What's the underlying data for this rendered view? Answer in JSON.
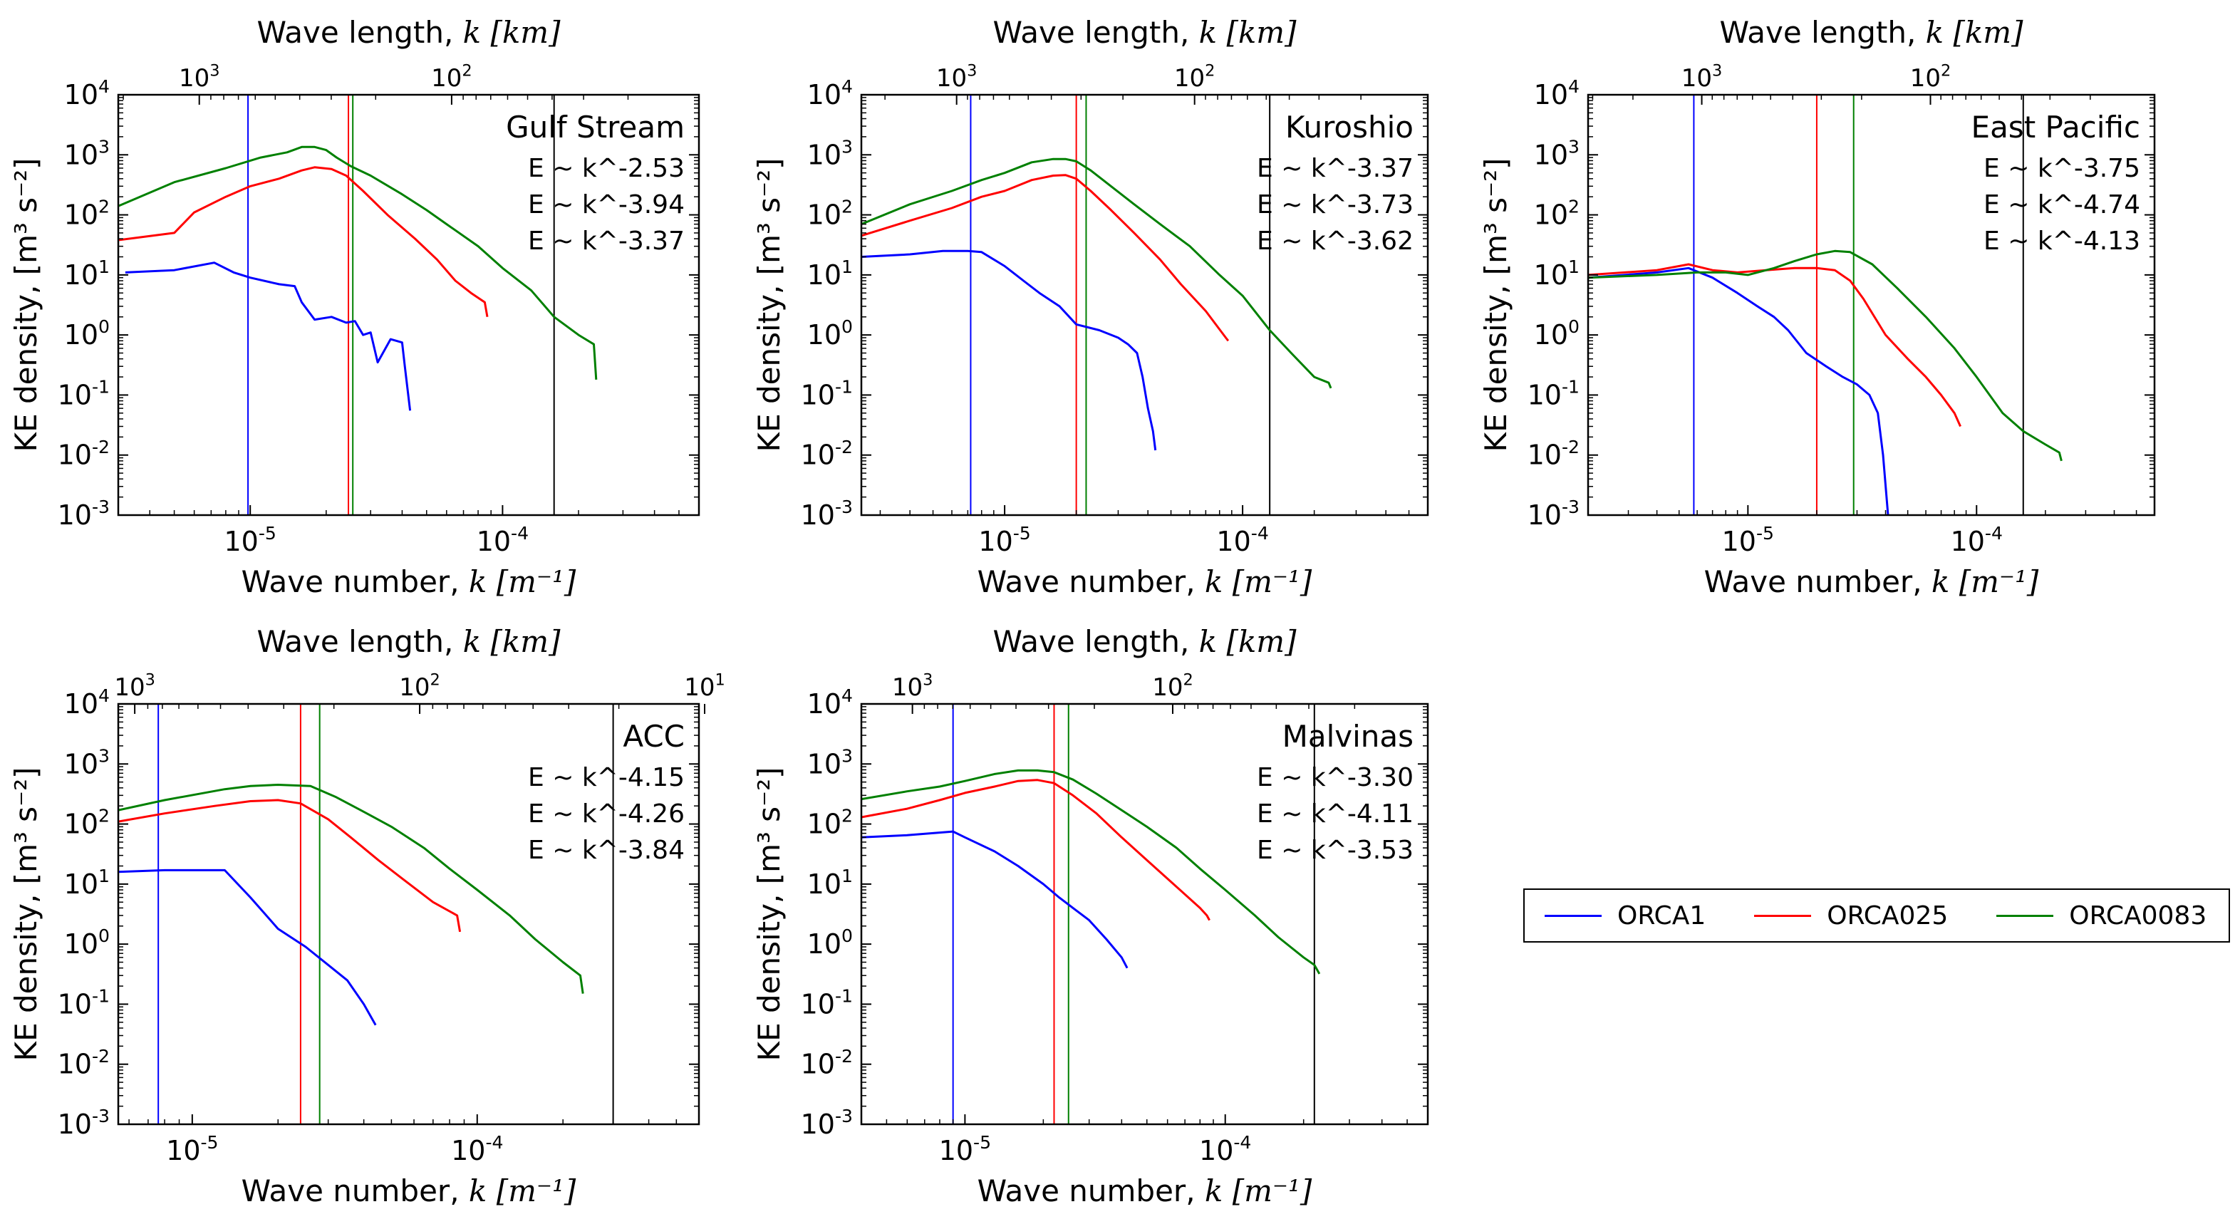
{
  "legend": [
    {
      "name": "ORCA1",
      "color": "#0000ff"
    },
    {
      "name": "ORCA025",
      "color": "#ff0000"
    },
    {
      "name": "ORCA0083",
      "color": "#008000"
    }
  ],
  "axis_text": {
    "xlabel": "Wave number, ",
    "xlabel_var": "k",
    "xlabel_unit": "[m⁻¹]",
    "ylabel": "KE density, [m³ s⁻²]",
    "toplabel": "Wave length, ",
    "toplabel_var": "k",
    "toplabel_unit": "[km]"
  },
  "chart_data": [
    {
      "type": "line",
      "title": "Gulf Stream",
      "xscale": "log",
      "yscale": "log",
      "xlim": [
        3e-06,
        0.0006
      ],
      "ylim": [
        0.001,
        10000
      ],
      "yticks": [
        "10^4",
        "10^3",
        "10^2",
        "10^1",
        "10^0",
        "10^-1",
        "10^-2",
        "10^-3"
      ],
      "xticks": [
        {
          "v": 1e-05,
          "base": "10",
          "exp": "-5"
        },
        {
          "v": 0.0001,
          "base": "10",
          "exp": "-4"
        }
      ],
      "top_ticks": [
        {
          "v": 6.283e-06,
          "base": "10",
          "exp": "3"
        },
        {
          "v": 6.283e-05,
          "base": "10",
          "exp": "2"
        }
      ],
      "slopes": [
        "E ~ k^-2.53",
        "E ~ k^-3.94",
        "E ~ k^-3.37"
      ],
      "vlines": [
        {
          "x": 9.8e-06,
          "color": "#0000ff"
        },
        {
          "x": 2.45e-05,
          "color": "#ff0000"
        },
        {
          "x": 2.55e-05,
          "color": "#008000"
        },
        {
          "x": 0.00016,
          "color": "#000000"
        }
      ],
      "series": [
        {
          "name": "ORCA1",
          "color": "#0000ff",
          "x": [
            3.2e-06,
            5e-06,
            7.2e-06,
            8.6e-06,
            1e-05,
            1.3e-05,
            1.5e-05,
            1.6e-05,
            1.8e-05,
            2.1e-05,
            2.4e-05,
            2.6e-05,
            2.8e-05,
            3e-05,
            3.2e-05,
            3.6e-05,
            4e-05,
            4.1e-05,
            4.3e-05
          ],
          "y": [
            11,
            12,
            16,
            11,
            9,
            7,
            6.5,
            3.5,
            1.8,
            2.0,
            1.6,
            1.7,
            1.0,
            1.1,
            0.35,
            0.85,
            0.75,
            0.3,
            0.055
          ]
        },
        {
          "name": "ORCA025",
          "color": "#ff0000",
          "x": [
            3e-06,
            5e-06,
            6e-06,
            8e-06,
            1e-05,
            1.3e-05,
            1.6e-05,
            1.8e-05,
            2.1e-05,
            2.4e-05,
            2.8e-05,
            3.5e-05,
            4.5e-05,
            5.5e-05,
            6.5e-05,
            7.5e-05,
            8.5e-05,
            8.7e-05
          ],
          "y": [
            38,
            50,
            110,
            200,
            300,
            400,
            550,
            620,
            580,
            450,
            250,
            100,
            40,
            18,
            8,
            5,
            3.5,
            2
          ]
        },
        {
          "name": "ORCA0083",
          "color": "#008000",
          "x": [
            3e-06,
            5e-06,
            8e-06,
            1.1e-05,
            1.4e-05,
            1.6e-05,
            1.8e-05,
            2e-05,
            2.2e-05,
            2.5e-05,
            3e-05,
            4e-05,
            5e-05,
            6e-05,
            8e-05,
            0.0001,
            0.00013,
            0.00016,
            0.0002,
            0.00023,
            0.000235
          ],
          "y": [
            140,
            350,
            600,
            900,
            1100,
            1350,
            1350,
            1200,
            900,
            650,
            450,
            220,
            120,
            70,
            30,
            13,
            5.5,
            2.0,
            1.0,
            0.7,
            0.18
          ]
        }
      ]
    },
    {
      "type": "line",
      "title": "Kuroshio",
      "xscale": "log",
      "yscale": "log",
      "xlim": [
        2.5e-06,
        0.0006
      ],
      "ylim": [
        0.001,
        10000
      ],
      "yticks": [
        "10^4",
        "10^3",
        "10^2",
        "10^1",
        "10^0",
        "10^-1",
        "10^-2",
        "10^-3"
      ],
      "xticks": [
        {
          "v": 1e-05,
          "base": "10",
          "exp": "-5"
        },
        {
          "v": 0.0001,
          "base": "10",
          "exp": "-4"
        }
      ],
      "top_ticks": [
        {
          "v": 6.283e-06,
          "base": "10",
          "exp": "3"
        },
        {
          "v": 6.283e-05,
          "base": "10",
          "exp": "2"
        }
      ],
      "slopes": [
        "E ~ k^-3.37",
        "E ~ k^-3.73",
        "E ~ k^-3.62"
      ],
      "vlines": [
        {
          "x": 7.2e-06,
          "color": "#0000ff"
        },
        {
          "x": 2e-05,
          "color": "#ff0000"
        },
        {
          "x": 2.2e-05,
          "color": "#008000"
        },
        {
          "x": 0.00013,
          "color": "#000000"
        }
      ],
      "series": [
        {
          "name": "ORCA1",
          "color": "#0000ff",
          "x": [
            2.5e-06,
            4e-06,
            5.5e-06,
            7e-06,
            8e-06,
            1e-05,
            1.2e-05,
            1.4e-05,
            1.7e-05,
            2e-05,
            2.5e-05,
            3e-05,
            3.3e-05,
            3.6e-05,
            3.8e-05,
            4e-05,
            4.2e-05,
            4.3e-05
          ],
          "y": [
            20,
            22,
            25,
            25,
            24,
            14,
            8,
            5,
            3,
            1.5,
            1.2,
            0.9,
            0.7,
            0.5,
            0.2,
            0.06,
            0.025,
            0.012
          ]
        },
        {
          "name": "ORCA025",
          "color": "#ff0000",
          "x": [
            2.5e-06,
            4e-06,
            6e-06,
            8e-06,
            1e-05,
            1.3e-05,
            1.6e-05,
            1.8e-05,
            2e-05,
            2.3e-05,
            2.8e-05,
            3.5e-05,
            4.5e-05,
            5.5e-05,
            7e-05,
            8.5e-05,
            8.7e-05
          ],
          "y": [
            45,
            80,
            130,
            200,
            250,
            380,
            450,
            460,
            400,
            250,
            120,
            50,
            18,
            7,
            2.5,
            0.9,
            0.8
          ]
        },
        {
          "name": "ORCA0083",
          "color": "#008000",
          "x": [
            2.5e-06,
            4e-06,
            6e-06,
            8e-06,
            1e-05,
            1.3e-05,
            1.6e-05,
            1.8e-05,
            2e-05,
            2.3e-05,
            2.8e-05,
            3.5e-05,
            4.5e-05,
            6e-05,
            8e-05,
            0.0001,
            0.00013,
            0.00016,
            0.0002,
            0.00023,
            0.000235
          ],
          "y": [
            70,
            150,
            250,
            380,
            500,
            750,
            850,
            850,
            780,
            550,
            300,
            150,
            70,
            30,
            10,
            4.5,
            1.2,
            0.5,
            0.2,
            0.16,
            0.13
          ]
        }
      ]
    },
    {
      "type": "line",
      "title": "East Pacific",
      "xscale": "log",
      "yscale": "log",
      "xlim": [
        2e-06,
        0.0006
      ],
      "ylim": [
        0.001,
        10000
      ],
      "yticks": [
        "10^4",
        "10^3",
        "10^2",
        "10^1",
        "10^0",
        "10^-1",
        "10^-2",
        "10^-3"
      ],
      "xticks": [
        {
          "v": 1e-05,
          "base": "10",
          "exp": "-5"
        },
        {
          "v": 0.0001,
          "base": "10",
          "exp": "-4"
        }
      ],
      "top_ticks": [
        {
          "v": 6.283e-06,
          "base": "10",
          "exp": "3"
        },
        {
          "v": 6.283e-05,
          "base": "10",
          "exp": "2"
        }
      ],
      "slopes": [
        "E ~ k^-3.75",
        "E ~ k^-4.74",
        "E ~ k^-4.13"
      ],
      "vlines": [
        {
          "x": 5.8e-06,
          "color": "#0000ff"
        },
        {
          "x": 2e-05,
          "color": "#ff0000"
        },
        {
          "x": 2.9e-05,
          "color": "#008000"
        },
        {
          "x": 0.00016,
          "color": "#000000"
        }
      ],
      "series": [
        {
          "name": "ORCA1",
          "color": "#0000ff",
          "x": [
            2e-06,
            4e-06,
            5.5e-06,
            7e-06,
            9e-06,
            1.1e-05,
            1.3e-05,
            1.5e-05,
            1.8e-05,
            2.2e-05,
            2.6e-05,
            3e-05,
            3.4e-05,
            3.7e-05,
            3.9e-05,
            4.1e-05
          ],
          "y": [
            9,
            11,
            13,
            9,
            5,
            3,
            2,
            1.2,
            0.5,
            0.3,
            0.2,
            0.15,
            0.1,
            0.05,
            0.01,
            0.001
          ]
        },
        {
          "name": "ORCA025",
          "color": "#ff0000",
          "x": [
            2e-06,
            4e-06,
            5.5e-06,
            7e-06,
            9e-06,
            1.2e-05,
            1.6e-05,
            2e-05,
            2.4e-05,
            2.8e-05,
            3.2e-05,
            4e-05,
            5e-05,
            6e-05,
            7e-05,
            8e-05,
            8.5e-05
          ],
          "y": [
            10,
            12,
            15,
            12,
            11,
            12,
            13,
            13,
            12,
            8,
            4,
            1,
            0.4,
            0.2,
            0.1,
            0.05,
            0.03
          ]
        },
        {
          "name": "ORCA0083",
          "color": "#008000",
          "x": [
            2e-06,
            4e-06,
            6e-06,
            8e-06,
            1e-05,
            1.3e-05,
            1.6e-05,
            2e-05,
            2.4e-05,
            2.8e-05,
            3.5e-05,
            4.5e-05,
            6e-05,
            8e-05,
            0.0001,
            0.00013,
            0.00016,
            0.0002,
            0.00023,
            0.000235
          ],
          "y": [
            9,
            10,
            11,
            11,
            10,
            13,
            17,
            22,
            25,
            24,
            15,
            6,
            2,
            0.6,
            0.2,
            0.05,
            0.025,
            0.015,
            0.011,
            0.008
          ]
        }
      ]
    },
    {
      "type": "line",
      "title": "ACC",
      "xscale": "log",
      "yscale": "log",
      "xlim": [
        5.5e-06,
        0.0006
      ],
      "ylim": [
        0.001,
        10000
      ],
      "yticks": [
        "10^4",
        "10^3",
        "10^2",
        "10^1",
        "10^0",
        "10^-1",
        "10^-2",
        "10^-3"
      ],
      "xticks": [
        {
          "v": 1e-05,
          "base": "10",
          "exp": "-5"
        },
        {
          "v": 0.0001,
          "base": "10",
          "exp": "-4"
        }
      ],
      "top_ticks": [
        {
          "v": 6.283e-06,
          "base": "10",
          "exp": "3"
        },
        {
          "v": 6.283e-05,
          "base": "10",
          "exp": "2"
        },
        {
          "v": 0.0006283,
          "base": "10",
          "exp": "1"
        }
      ],
      "slopes": [
        "E ~ k^-4.15",
        "E ~ k^-4.26",
        "E ~ k^-3.84"
      ],
      "vlines": [
        {
          "x": 7.6e-06,
          "color": "#0000ff"
        },
        {
          "x": 2.4e-05,
          "color": "#ff0000"
        },
        {
          "x": 2.8e-05,
          "color": "#008000"
        },
        {
          "x": 0.0003,
          "color": "#000000"
        }
      ],
      "series": [
        {
          "name": "ORCA1",
          "color": "#0000ff",
          "x": [
            5.5e-06,
            8e-06,
            1.3e-05,
            1.6e-05,
            2e-05,
            2.5e-05,
            3e-05,
            3.5e-05,
            4e-05,
            4.4e-05
          ],
          "y": [
            16,
            17,
            17,
            6,
            1.8,
            0.9,
            0.45,
            0.25,
            0.1,
            0.045
          ]
        },
        {
          "name": "ORCA025",
          "color": "#ff0000",
          "x": [
            5.5e-06,
            8e-06,
            1.2e-05,
            1.6e-05,
            2e-05,
            2.4e-05,
            3e-05,
            3.6e-05,
            4.5e-05,
            5.5e-05,
            7e-05,
            8.5e-05,
            8.7e-05
          ],
          "y": [
            110,
            150,
            200,
            240,
            250,
            220,
            120,
            60,
            25,
            12,
            5,
            3,
            1.6
          ]
        },
        {
          "name": "ORCA0083",
          "color": "#008000",
          "x": [
            5.5e-06,
            8e-06,
            1.3e-05,
            1.6e-05,
            2e-05,
            2.6e-05,
            3.2e-05,
            4e-05,
            5e-05,
            6.5e-05,
            8e-05,
            0.0001,
            0.00013,
            0.00016,
            0.0002,
            0.00023,
            0.000235
          ],
          "y": [
            170,
            250,
            380,
            430,
            450,
            430,
            280,
            160,
            90,
            40,
            18,
            8,
            3,
            1.2,
            0.5,
            0.3,
            0.15
          ]
        }
      ]
    },
    {
      "type": "line",
      "title": "Malvinas",
      "xscale": "log",
      "yscale": "log",
      "xlim": [
        4e-06,
        0.0006
      ],
      "ylim": [
        0.001,
        10000
      ],
      "yticks": [
        "10^4",
        "10^3",
        "10^2",
        "10^1",
        "10^0",
        "10^-1",
        "10^-2",
        "10^-3"
      ],
      "xticks": [
        {
          "v": 1e-05,
          "base": "10",
          "exp": "-5"
        },
        {
          "v": 0.0001,
          "base": "10",
          "exp": "-4"
        }
      ],
      "top_ticks": [
        {
          "v": 6.283e-06,
          "base": "10",
          "exp": "3"
        },
        {
          "v": 6.283e-05,
          "base": "10",
          "exp": "2"
        }
      ],
      "slopes": [
        "E ~ k^-3.30",
        "E ~ k^-4.11",
        "E ~ k^-3.53"
      ],
      "vlines": [
        {
          "x": 9e-06,
          "color": "#0000ff"
        },
        {
          "x": 2.2e-05,
          "color": "#ff0000"
        },
        {
          "x": 2.5e-05,
          "color": "#008000"
        },
        {
          "x": 0.00022,
          "color": "#000000"
        }
      ],
      "series": [
        {
          "name": "ORCA1",
          "color": "#0000ff",
          "x": [
            4e-06,
            6e-06,
            9e-06,
            1e-05,
            1.3e-05,
            1.6e-05,
            2e-05,
            2.3e-05,
            2.6e-05,
            3e-05,
            3.5e-05,
            4e-05,
            4.2e-05
          ],
          "y": [
            60,
            65,
            75,
            60,
            35,
            20,
            10,
            6,
            4,
            2.5,
            1.2,
            0.6,
            0.4
          ]
        },
        {
          "name": "ORCA025",
          "color": "#ff0000",
          "x": [
            4e-06,
            6e-06,
            8e-06,
            1e-05,
            1.3e-05,
            1.6e-05,
            1.9e-05,
            2.2e-05,
            2.6e-05,
            3.2e-05,
            4e-05,
            5e-05,
            6.5e-05,
            8e-05,
            8.5e-05,
            8.7e-05
          ],
          "y": [
            130,
            180,
            250,
            330,
            420,
            520,
            540,
            480,
            300,
            150,
            60,
            25,
            9,
            4,
            3,
            2.5
          ]
        },
        {
          "name": "ORCA0083",
          "color": "#008000",
          "x": [
            4e-06,
            6e-06,
            8e-06,
            1e-05,
            1.3e-05,
            1.6e-05,
            1.9e-05,
            2.2e-05,
            2.6e-05,
            3.2e-05,
            4e-05,
            5e-05,
            6.5e-05,
            8e-05,
            0.0001,
            0.00013,
            0.00016,
            0.0002,
            0.00022,
            0.00023
          ],
          "y": [
            260,
            350,
            420,
            520,
            680,
            780,
            780,
            730,
            550,
            320,
            170,
            90,
            40,
            18,
            8,
            3,
            1.3,
            0.6,
            0.45,
            0.32
          ]
        }
      ]
    }
  ]
}
